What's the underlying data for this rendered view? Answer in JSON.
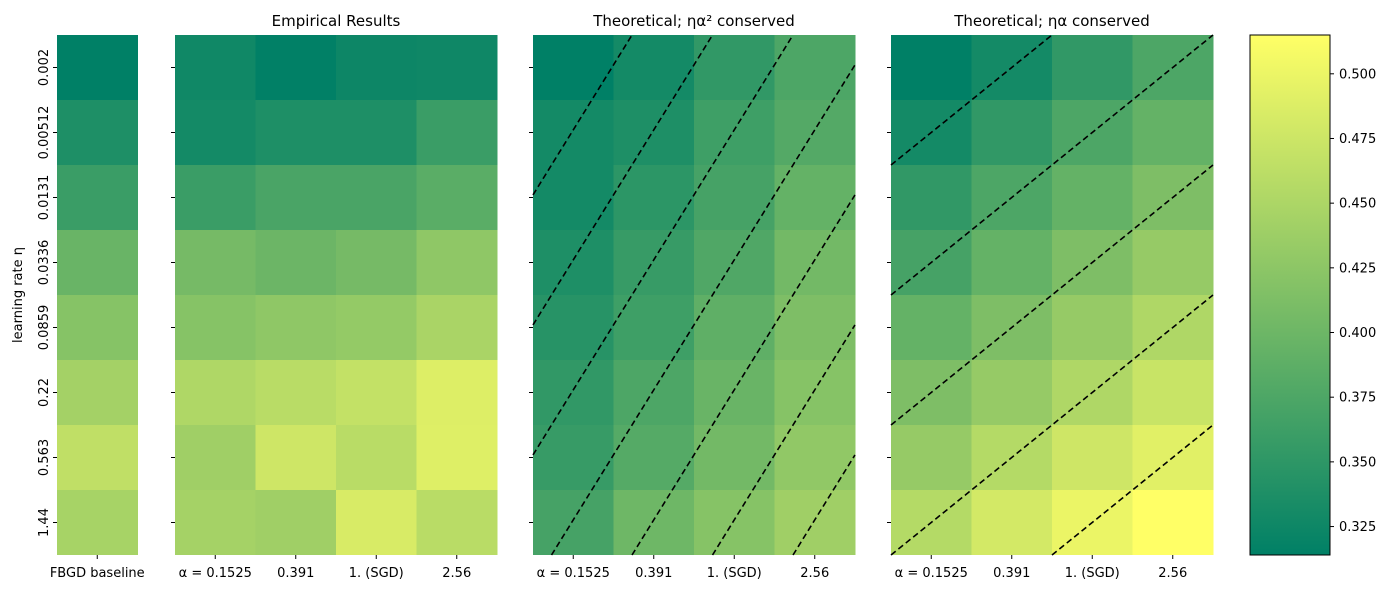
{
  "chart_data": {
    "type": "heatmap",
    "colormap": "summer",
    "ylabel": "learning rate η",
    "row_labels": [
      "0.002",
      "0.00512",
      "0.0131",
      "0.0336",
      "0.0859",
      "0.22",
      "0.563",
      "1.44"
    ],
    "colorbar": {
      "range": [
        0.314,
        0.515
      ],
      "ticks": [
        "0.325",
        "0.350",
        "0.375",
        "0.400",
        "0.425",
        "0.450",
        "0.475",
        "0.500"
      ]
    },
    "panels": [
      {
        "title": "",
        "columns": [
          "FBGD baseline"
        ],
        "values": [
          [
            0.314
          ],
          [
            0.338
          ],
          [
            0.36
          ],
          [
            0.397
          ],
          [
            0.42
          ],
          [
            0.443
          ],
          [
            0.465
          ],
          [
            0.446
          ]
        ]
      },
      {
        "title": "Empirical Results",
        "columns": [
          "α = 0.1525",
          "0.391",
          "1. (SGD)",
          "2.56"
        ],
        "values": [
          [
            0.327,
            0.315,
            0.324,
            0.326
          ],
          [
            0.33,
            0.338,
            0.338,
            0.36
          ],
          [
            0.36,
            0.372,
            0.372,
            0.385
          ],
          [
            0.407,
            0.399,
            0.407,
            0.427
          ],
          [
            0.42,
            0.427,
            0.431,
            0.448
          ],
          [
            0.452,
            0.46,
            0.468,
            0.488
          ],
          [
            0.44,
            0.476,
            0.46,
            0.489
          ],
          [
            0.444,
            0.44,
            0.484,
            0.46
          ]
        ]
      },
      {
        "title": "Theoretical; ηα² conserved",
        "columns": [
          "α = 0.1525",
          "0.391",
          "1. (SGD)",
          "2.56"
        ],
        "contours": "dashed lines of constant ηα²",
        "values": [
          [
            0.314,
            0.33,
            0.353,
            0.375
          ],
          [
            0.33,
            0.338,
            0.363,
            0.38
          ],
          [
            0.33,
            0.349,
            0.369,
            0.393
          ],
          [
            0.338,
            0.357,
            0.377,
            0.405
          ],
          [
            0.345,
            0.363,
            0.389,
            0.413
          ],
          [
            0.353,
            0.375,
            0.397,
            0.42
          ],
          [
            0.357,
            0.381,
            0.405,
            0.428
          ],
          [
            0.369,
            0.401,
            0.42,
            0.44
          ]
        ]
      },
      {
        "title": "Theoretical; ηα conserved",
        "columns": [
          "α = 0.1525",
          "0.391",
          "1. (SGD)",
          "2.56"
        ],
        "contours": "dashed lines of constant ηα",
        "values": [
          [
            0.314,
            0.33,
            0.353,
            0.375
          ],
          [
            0.33,
            0.353,
            0.375,
            0.393
          ],
          [
            0.353,
            0.375,
            0.393,
            0.413
          ],
          [
            0.369,
            0.393,
            0.413,
            0.432
          ],
          [
            0.393,
            0.413,
            0.432,
            0.452
          ],
          [
            0.413,
            0.432,
            0.452,
            0.472
          ],
          [
            0.432,
            0.456,
            0.476,
            0.491
          ],
          [
            0.456,
            0.48,
            0.499,
            0.515
          ]
        ]
      }
    ]
  }
}
